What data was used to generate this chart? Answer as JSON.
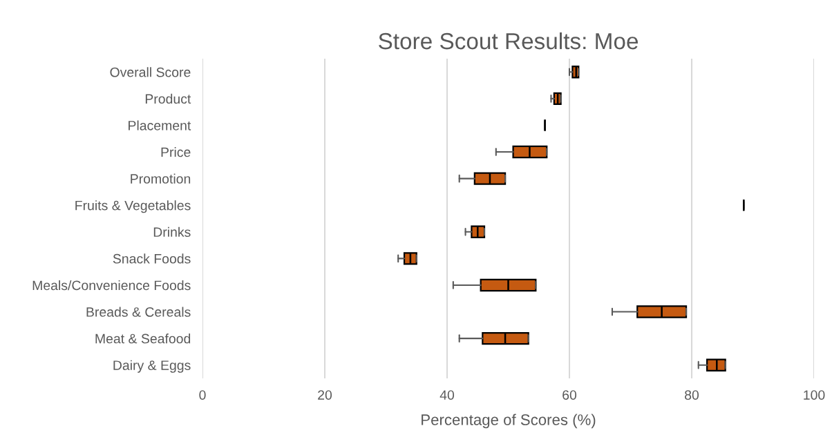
{
  "chart_data": {
    "type": "box",
    "title": "Store Scout Results: Moe",
    "xlabel": "Percentage of Scores (%)",
    "orientation": "horizontal",
    "categories": [
      "Overall Score",
      "Product",
      "Placement",
      "Price",
      "Promotion",
      "Fruits & Vegetables",
      "Drinks",
      "Snack Foods",
      "Meals/Convenience Foods",
      "Breads & Cereals",
      "Meat & Seafood",
      "Dairy & Eggs"
    ],
    "colors": [
      "#c55a11",
      "#c55a11",
      "#000000",
      "#c55a11",
      "#c55a11",
      "#000000",
      "#c55a11",
      "#c55a11",
      "#c55a11",
      "#c55a11",
      "#c55a11",
      "#c55a11"
    ],
    "boxes": [
      {
        "low": 60.0,
        "q1": 60.5,
        "median": 61.1,
        "q3": 61.5,
        "high": 61.5
      },
      {
        "low": 57.0,
        "q1": 57.5,
        "median": 58.1,
        "q3": 58.6,
        "high": 58.6
      },
      {
        "low": 56.0,
        "q1": 56.0,
        "median": 56.0,
        "q3": 56.0,
        "high": 56.0
      },
      {
        "low": 48.0,
        "q1": 50.8,
        "median": 53.5,
        "q3": 56.3,
        "high": 56.3
      },
      {
        "low": 42.0,
        "q1": 44.5,
        "median": 47.0,
        "q3": 49.5,
        "high": 49.5
      },
      {
        "low": 88.5,
        "q1": 88.5,
        "median": 88.5,
        "q3": 88.5,
        "high": 88.5
      },
      {
        "low": 43.0,
        "q1": 44.0,
        "median": 45.0,
        "q3": 46.1,
        "high": 46.1
      },
      {
        "low": 32.0,
        "q1": 33.0,
        "median": 34.0,
        "q3": 35.0,
        "high": 35.0
      },
      {
        "low": 41.0,
        "q1": 45.5,
        "median": 50.0,
        "q3": 54.5,
        "high": 54.5
      },
      {
        "low": 67.0,
        "q1": 71.1,
        "median": 75.1,
        "q3": 79.1,
        "high": 79.1
      },
      {
        "low": 42.0,
        "q1": 45.8,
        "median": 49.5,
        "q3": 53.3,
        "high": 53.3
      },
      {
        "low": 81.1,
        "q1": 82.5,
        "median": 84.1,
        "q3": 85.5,
        "high": 85.5
      }
    ],
    "xlim": [
      0,
      100
    ],
    "xticks": [
      0,
      20,
      40,
      60,
      80,
      100
    ],
    "grid": "x"
  }
}
